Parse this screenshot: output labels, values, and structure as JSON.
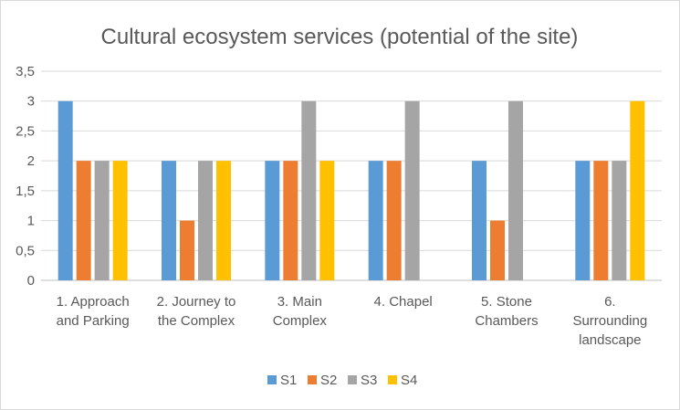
{
  "chart_data": {
    "type": "bar",
    "title": "Cultural ecosystem services (potential of the site)",
    "categories": [
      [
        "1. Approach",
        "and Parking"
      ],
      [
        "2. Journey to",
        "the Complex"
      ],
      [
        "3. Main",
        "Complex"
      ],
      [
        "4. Chapel"
      ],
      [
        "5. Stone",
        "Chambers"
      ],
      [
        "6.",
        "Surrounding",
        "landscape"
      ]
    ],
    "series": [
      {
        "name": "S1",
        "color": "#5b9bd5",
        "values": [
          3,
          2,
          2,
          2,
          2,
          2
        ]
      },
      {
        "name": "S2",
        "color": "#ed7d31",
        "values": [
          2,
          1,
          2,
          2,
          1,
          2
        ]
      },
      {
        "name": "S3",
        "color": "#a5a5a5",
        "values": [
          2,
          2,
          3,
          3,
          3,
          2
        ]
      },
      {
        "name": "S4",
        "color": "#ffc000",
        "values": [
          2,
          2,
          2,
          0,
          0,
          3
        ]
      }
    ],
    "ylim": [
      0,
      3.5
    ],
    "yticks": [
      "0",
      "0,5",
      "1",
      "1,5",
      "2",
      "2,5",
      "3",
      "3,5"
    ],
    "grid": true,
    "legend": "bottom"
  }
}
